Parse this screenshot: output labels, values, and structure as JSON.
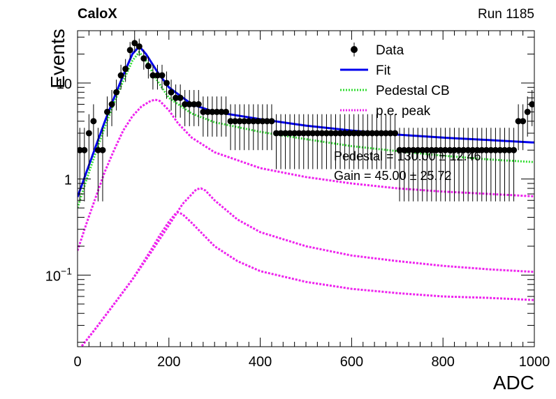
{
  "header": {
    "experiment": "CaloX",
    "run": "Run 1185"
  },
  "fit_results": {
    "pedestal": "Pedestal = 130.00 ± 12.46",
    "gain": "Gain = 45.00 ± 25.72"
  },
  "colors": {
    "data": "#000000",
    "fit": "#0000ee",
    "pedestal": "#33dd33",
    "pe": "#ee22ee"
  },
  "chart_data": {
    "type": "scatter",
    "xlabel": "ADC",
    "ylabel": "Events",
    "xlim": [
      0,
      1000
    ],
    "ylim": [
      0.018,
      35
    ],
    "yscale": "log",
    "x_ticks": [
      0,
      200,
      400,
      600,
      800,
      1000
    ],
    "y_ticks": [
      {
        "value": 0.1,
        "base": "10",
        "exp": "−1"
      },
      {
        "value": 1,
        "base": "1",
        "exp": ""
      },
      {
        "value": 10,
        "base": "10",
        "exp": ""
      }
    ],
    "legend": {
      "placement": "top-right",
      "entries": [
        {
          "key": "data",
          "label": "Data"
        },
        {
          "key": "fit",
          "label": "Fit"
        },
        {
          "key": "pedestal",
          "label": "Pedestal CB"
        },
        {
          "key": "pe",
          "label": "p.e. peak"
        }
      ]
    },
    "series": [
      {
        "name": "Data",
        "style": "markers",
        "x": [
          5,
          15,
          25,
          35,
          45,
          55,
          65,
          75,
          85,
          95,
          105,
          115,
          125,
          135,
          145,
          155,
          165,
          175,
          185,
          195,
          205,
          215,
          225,
          235,
          245,
          255,
          265,
          275,
          285,
          295,
          305,
          315,
          325,
          335,
          345,
          355,
          365,
          375,
          385,
          395,
          405,
          415,
          425,
          435,
          445,
          455,
          465,
          475,
          485,
          495,
          505,
          515,
          525,
          535,
          545,
          555,
          565,
          575,
          585,
          595,
          605,
          615,
          625,
          635,
          645,
          655,
          665,
          675,
          685,
          695,
          705,
          715,
          725,
          735,
          745,
          755,
          765,
          775,
          785,
          795,
          805,
          815,
          825,
          835,
          845,
          855,
          865,
          875,
          885,
          895,
          905,
          915,
          925,
          935,
          945,
          955,
          965,
          975,
          985,
          995
        ],
        "y": [
          2,
          2,
          3,
          4,
          2,
          2,
          5,
          6,
          8,
          12,
          14,
          22,
          26,
          24,
          18,
          15,
          12,
          12,
          12,
          10,
          8,
          7,
          7,
          6,
          6,
          6,
          6,
          5,
          5,
          5,
          5,
          5,
          5,
          4,
          4,
          4,
          4,
          4,
          4,
          4,
          4,
          4,
          4,
          3,
          3,
          3,
          3,
          3,
          3,
          3,
          3,
          3,
          3,
          3,
          3,
          3,
          3,
          3,
          3,
          3,
          3,
          3,
          3,
          3,
          3,
          3,
          3,
          3,
          3,
          3,
          2,
          2,
          2,
          2,
          2,
          2,
          2,
          2,
          2,
          2,
          2,
          2,
          2,
          2,
          2,
          2,
          2,
          2,
          2,
          2,
          2,
          2,
          2,
          2,
          2,
          2,
          4,
          4,
          5,
          6
        ]
      },
      {
        "name": "Fit",
        "style": "line",
        "x": [
          0,
          20,
          40,
          60,
          80,
          100,
          120,
          135,
          150,
          175,
          200,
          250,
          300,
          400,
          500,
          600,
          700,
          800,
          900,
          1000
        ],
        "y": [
          0.65,
          1.2,
          2.2,
          4,
          7,
          12,
          20,
          24,
          20,
          13,
          9,
          6,
          5,
          4.2,
          3.6,
          3.2,
          2.9,
          2.7,
          2.55,
          2.4
        ]
      },
      {
        "name": "Pedestal CB",
        "style": "dotted",
        "x": [
          0,
          20,
          40,
          60,
          80,
          100,
          120,
          135,
          150,
          175,
          200,
          250,
          300,
          400,
          500,
          600,
          700,
          800,
          900,
          1000
        ],
        "y": [
          0.5,
          1.0,
          1.9,
          3.5,
          6.2,
          10.5,
          17,
          21,
          17,
          10.5,
          7,
          4.8,
          3.9,
          3.1,
          2.6,
          2.2,
          1.95,
          1.75,
          1.6,
          1.5
        ]
      },
      {
        "name": "p.e. peak",
        "style": "dotted",
        "x": [
          0,
          20,
          40,
          60,
          80,
          100,
          120,
          140,
          160,
          170,
          180,
          200,
          220,
          250,
          300,
          400,
          500,
          600,
          700,
          800,
          900,
          1000
        ],
        "y": [
          0.18,
          0.35,
          0.65,
          1.2,
          2.0,
          3.2,
          4.5,
          5.7,
          6.5,
          6.7,
          6.5,
          5.2,
          3.8,
          2.7,
          1.9,
          1.3,
          1.05,
          0.9,
          0.8,
          0.74,
          0.7,
          0.66
        ]
      },
      {
        "name": "",
        "style": "dotted",
        "x": [
          0,
          40,
          80,
          120,
          160,
          200,
          230,
          260,
          270,
          280,
          300,
          350,
          400,
          500,
          600,
          700,
          800,
          900,
          1000
        ],
        "y": [
          0.016,
          0.028,
          0.05,
          0.09,
          0.17,
          0.33,
          0.55,
          0.78,
          0.8,
          0.76,
          0.6,
          0.38,
          0.28,
          0.2,
          0.16,
          0.14,
          0.125,
          0.115,
          0.108
        ]
      },
      {
        "name": "",
        "style": "dotted",
        "x": [
          0,
          40,
          80,
          120,
          160,
          180,
          200,
          215,
          220,
          230,
          250,
          300,
          350,
          400,
          500,
          600,
          700,
          800,
          900,
          1000
        ],
        "y": [
          0.016,
          0.028,
          0.05,
          0.09,
          0.18,
          0.26,
          0.36,
          0.44,
          0.45,
          0.43,
          0.35,
          0.2,
          0.14,
          0.11,
          0.085,
          0.072,
          0.065,
          0.06,
          0.058,
          0.055
        ]
      }
    ]
  }
}
